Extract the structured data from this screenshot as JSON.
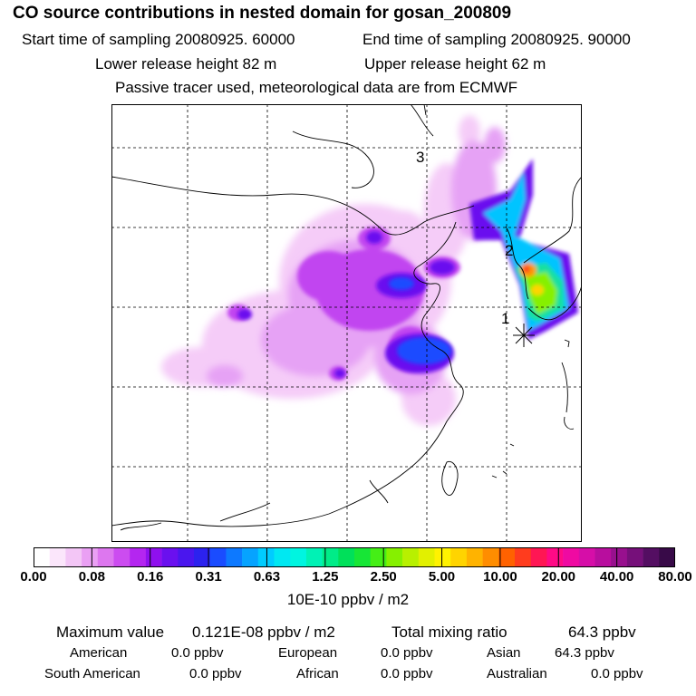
{
  "title": "CO  source contributions in nested domain for gosan_200809",
  "header": {
    "start_time": "Start time of sampling 20080925. 60000",
    "end_time": "End time of sampling 20080925. 90000",
    "lower_height": "Lower release height   82 m",
    "upper_height": "Upper release height   62 m",
    "tracer_info": "Passive tracer used, meteorological data are from ECMWF"
  },
  "map": {
    "markers": [
      "1",
      "2",
      "3"
    ],
    "receptor_symbol": "receptor-asterisk"
  },
  "colorbar": {
    "labels": [
      "0.00",
      "0.08",
      "0.16",
      "0.31",
      "0.63",
      "1.25",
      "2.50",
      "5.00",
      "10.00",
      "20.00",
      "40.00",
      "80.00"
    ],
    "units": "10E-10 ppbv / m2",
    "colors": [
      "#ffffff",
      "#fbe6fb",
      "#f3c6f6",
      "#eaa0f4",
      "#dd77ef",
      "#cc4cf0",
      "#b426f0",
      "#8f10ee",
      "#6a10ef",
      "#4a16ee",
      "#2c22ef",
      "#1a4cff",
      "#0d79ff",
      "#06a3ff",
      "#00ccff",
      "#00e8f2",
      "#00f5e0",
      "#00f2b5",
      "#00ec88",
      "#00e05a",
      "#17e636",
      "#45ee16",
      "#86f000",
      "#b8f000",
      "#e2f000",
      "#fff200",
      "#ffd400",
      "#ffb300",
      "#ff8d00",
      "#ff6200",
      "#ff3c1e",
      "#ff1654",
      "#ff0a86",
      "#ef0aa2",
      "#d60ea8",
      "#b80e9e",
      "#98108e",
      "#76107a",
      "#540e62",
      "#380a48"
    ]
  },
  "stats": {
    "max_label": "Maximum value",
    "max_value": "0.121E-08 ppbv / m2",
    "total_label": "Total mixing ratio",
    "total_value": "64.3 ppbv"
  },
  "regions": [
    {
      "name": "American",
      "value": "0.0 ppbv"
    },
    {
      "name": "European",
      "value": "0.0 ppbv"
    },
    {
      "name": "Asian",
      "value": "64.3 ppbv"
    },
    {
      "name": "South American",
      "value": "0.0 ppbv"
    },
    {
      "name": "African",
      "value": "0.0 ppbv"
    },
    {
      "name": "Australian",
      "value": "0.0 ppbv"
    }
  ]
}
